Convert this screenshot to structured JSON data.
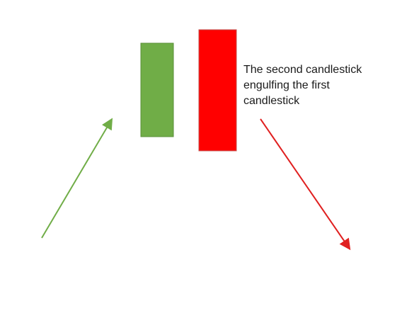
{
  "diagram": {
    "caption_lines": [
      "The second candlestick",
      "engulfing the first",
      "candlestick"
    ],
    "candles": [
      {
        "name": "first",
        "direction": "up",
        "color": "#70ad47",
        "border": "#5a8f3a"
      },
      {
        "name": "second",
        "direction": "down",
        "color": "#ff0000",
        "border": "#c0504d"
      }
    ],
    "arrows": [
      {
        "name": "uptrend",
        "direction": "up",
        "color": "#70ad47"
      },
      {
        "name": "downtrend",
        "direction": "down",
        "color": "#e02020"
      }
    ]
  }
}
